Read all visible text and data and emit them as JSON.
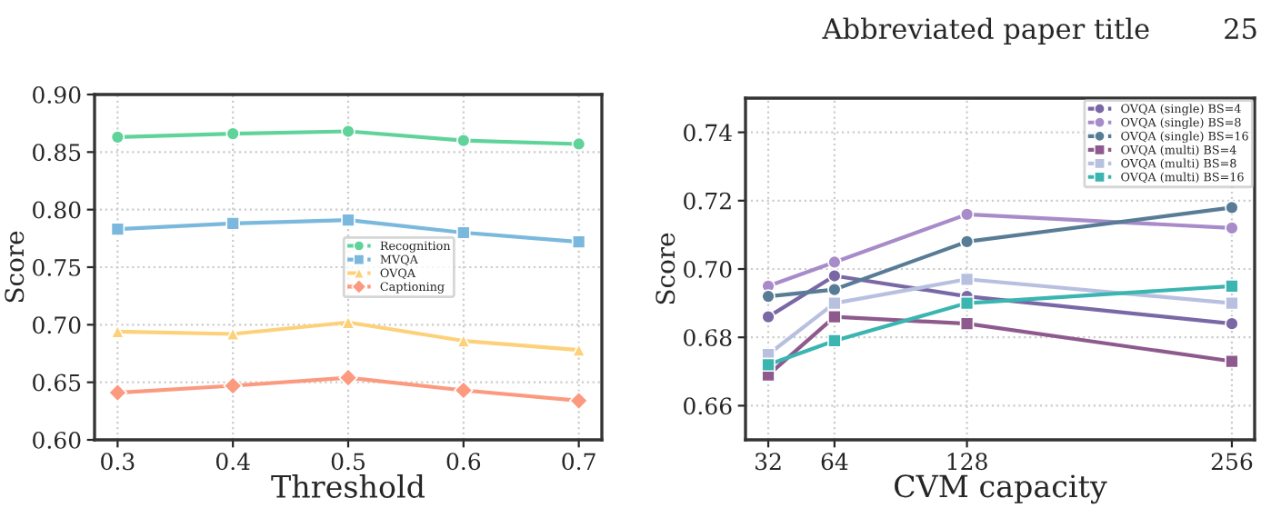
{
  "chart_data": [
    {
      "type": "line",
      "xlabel": "Threshold",
      "ylabel": "Score",
      "x": [
        0.3,
        0.4,
        0.5,
        0.6,
        0.7
      ],
      "xlim": [
        0.28,
        0.72
      ],
      "xticks": [
        0.3,
        0.4,
        0.5,
        0.6,
        0.7
      ],
      "ylim": [
        0.6,
        0.9
      ],
      "yticks": [
        {
          "value": 0.6,
          "label": "0.60"
        },
        {
          "value": 0.65,
          "label": "0.65"
        },
        {
          "value": 0.7,
          "label": "0.70"
        },
        {
          "value": 0.75,
          "label": "0.75"
        },
        {
          "value": 0.8,
          "label": "0.80"
        },
        {
          "value": 0.85,
          "label": "0.85"
        },
        {
          "value": 0.9,
          "label": "0.90"
        }
      ],
      "grid": true,
      "legend": "center",
      "series": [
        {
          "name": "Recognition",
          "color": "#5fd39a",
          "marker": "circle",
          "values": [
            0.863,
            0.866,
            0.868,
            0.86,
            0.857
          ]
        },
        {
          "name": "MVQA",
          "color": "#7ab8dd",
          "marker": "square",
          "values": [
            0.783,
            0.788,
            0.791,
            0.78,
            0.772
          ]
        },
        {
          "name": "OVQA",
          "color": "#fdd17a",
          "marker": "triangle",
          "values": [
            0.694,
            0.692,
            0.702,
            0.686,
            0.678
          ]
        },
        {
          "name": "Captioning",
          "color": "#fc9a80",
          "marker": "diamond",
          "values": [
            0.641,
            0.647,
            0.654,
            0.643,
            0.634
          ]
        }
      ]
    },
    {
      "type": "line",
      "xlabel": "CVM capacity",
      "ylabel": "Score",
      "x": [
        32,
        64,
        128,
        256
      ],
      "xlim": [
        21,
        267
      ],
      "xticks": [
        32,
        64,
        128,
        256
      ],
      "ylim": [
        0.65,
        0.75
      ],
      "yticks": [
        0.66,
        0.68,
        {
          "value": 0.7,
          "label": "0.70"
        },
        0.72,
        0.74
      ],
      "grid": true,
      "legend": "top right",
      "annotations": [
        "Abbreviated paper title",
        "25"
      ],
      "series": [
        {
          "name": "OVQA (single) BS=4",
          "color": "#7a68a6",
          "marker": "circle",
          "values": [
            0.686,
            0.698,
            0.692,
            0.684
          ]
        },
        {
          "name": "OVQA (single) BS=8",
          "color": "#a88bc9",
          "marker": "circle",
          "values": [
            0.695,
            0.702,
            0.716,
            0.712
          ]
        },
        {
          "name": "OVQA (single) BS=16",
          "color": "#587c96",
          "marker": "circle",
          "values": [
            0.692,
            0.694,
            0.708,
            0.718
          ]
        },
        {
          "name": "OVQA (multi) BS=4",
          "color": "#8e5a8e",
          "marker": "square",
          "values": [
            0.669,
            0.686,
            0.684,
            0.673
          ]
        },
        {
          "name": "OVQA (multi) BS=8",
          "color": "#b8c0e0",
          "marker": "square",
          "values": [
            0.675,
            0.69,
            0.697,
            0.69
          ]
        },
        {
          "name": "OVQA (multi) BS=16",
          "color": "#3ab5b0",
          "marker": "square",
          "values": [
            0.672,
            0.679,
            0.69,
            0.695
          ]
        }
      ]
    }
  ]
}
